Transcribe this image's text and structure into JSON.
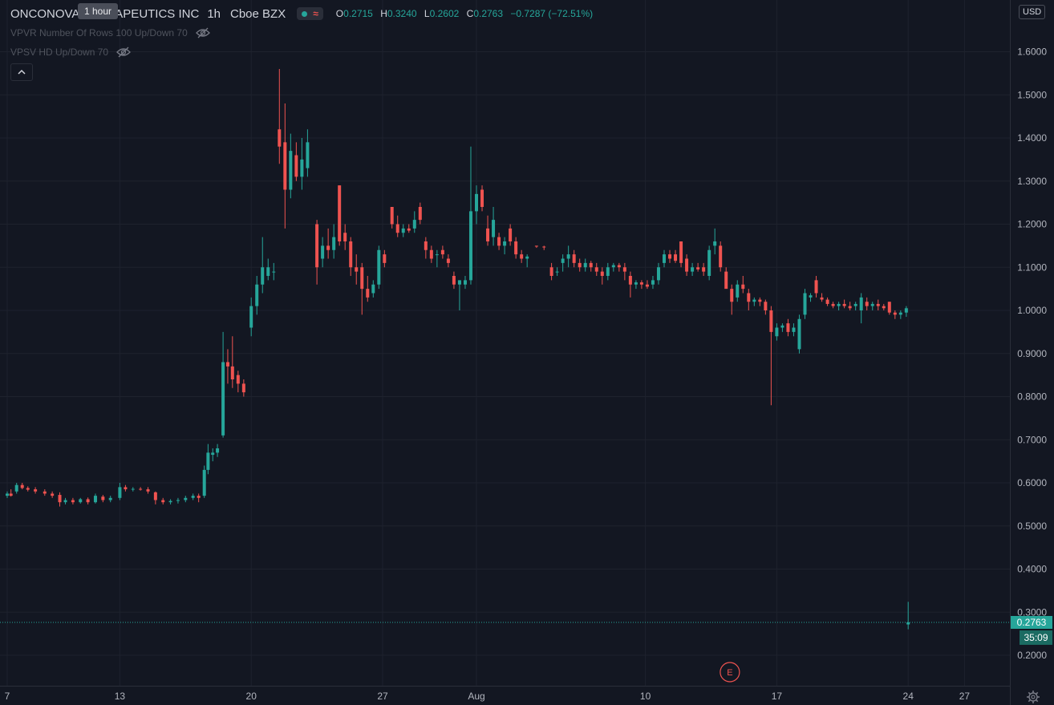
{
  "header": {
    "symbol": "ONCONOVA THERAPEUTICS INC",
    "interval": "1h",
    "exchange": "Cboe BZX",
    "tooltip": "1 hour",
    "ohlc": {
      "o_label": "O",
      "o": "0.2715",
      "h_label": "H",
      "h": "0.3240",
      "l_label": "L",
      "l": "0.2602",
      "c_label": "C",
      "c": "0.2763",
      "change": "−0.7287 (−72.51%)"
    }
  },
  "indicators": [
    {
      "label": "VPVR Number Of Rows 100 Up/Down 70",
      "icon": "eye-off-icon"
    },
    {
      "label": "VPSV HD Up/Down 70",
      "icon": "eye-off-icon"
    }
  ],
  "currency": "USD",
  "last_price_label": "0.2763",
  "countdown": "35:09",
  "earnings_marker": "E",
  "colors": {
    "background": "#131722",
    "grid": "#1e222d",
    "up": "#26a69a",
    "down": "#ef5350",
    "text": "#b2b5be"
  },
  "chart_data": {
    "type": "candlestick",
    "interval": "1h",
    "currency": "USD",
    "y_ticks": [
      0.2,
      0.3,
      0.4,
      0.5,
      0.6,
      0.7,
      0.8,
      0.9,
      1.0,
      1.1,
      1.2,
      1.3,
      1.4,
      1.5,
      1.6
    ],
    "y_tick_labels": [
      "0.2000",
      "0.3000",
      "0.4000",
      "0.5000",
      "0.6000",
      "0.7000",
      "0.8000",
      "0.9000",
      "1.0000",
      "1.1000",
      "1.2000",
      "1.3000",
      "1.4000",
      "1.5000",
      "1.6000"
    ],
    "x_ticks": [
      {
        "label": "7",
        "day": 7
      },
      {
        "label": "13",
        "day": 13
      },
      {
        "label": "20",
        "day": 20
      },
      {
        "label": "27",
        "day": 27
      },
      {
        "label": "Aug",
        "day": 32
      },
      {
        "label": "10",
        "day": 41
      },
      {
        "label": "17",
        "day": 48
      },
      {
        "label": "24",
        "day": 55
      },
      {
        "label": "27",
        "day": 58
      }
    ],
    "last_price": 0.2763,
    "earnings_day": 45.5,
    "candles": [
      {
        "t": 7.0,
        "o": 0.57,
        "h": 0.58,
        "l": 0.565,
        "c": 0.575
      },
      {
        "t": 7.2,
        "o": 0.575,
        "h": 0.585,
        "l": 0.568,
        "c": 0.57
      },
      {
        "t": 7.5,
        "o": 0.58,
        "h": 0.6,
        "l": 0.575,
        "c": 0.595
      },
      {
        "t": 7.8,
        "o": 0.595,
        "h": 0.6,
        "l": 0.585,
        "c": 0.588
      },
      {
        "t": 8.1,
        "o": 0.588,
        "h": 0.592,
        "l": 0.58,
        "c": 0.584
      },
      {
        "t": 8.5,
        "o": 0.585,
        "h": 0.59,
        "l": 0.575,
        "c": 0.58
      },
      {
        "t": 9.0,
        "o": 0.58,
        "h": 0.585,
        "l": 0.57,
        "c": 0.575
      },
      {
        "t": 9.4,
        "o": 0.575,
        "h": 0.58,
        "l": 0.565,
        "c": 0.57
      },
      {
        "t": 9.8,
        "o": 0.572,
        "h": 0.578,
        "l": 0.545,
        "c": 0.555
      },
      {
        "t": 10.1,
        "o": 0.555,
        "h": 0.565,
        "l": 0.55,
        "c": 0.56
      },
      {
        "t": 10.5,
        "o": 0.56,
        "h": 0.565,
        "l": 0.55,
        "c": 0.555
      },
      {
        "t": 10.9,
        "o": 0.555,
        "h": 0.565,
        "l": 0.552,
        "c": 0.562
      },
      {
        "t": 11.3,
        "o": 0.562,
        "h": 0.566,
        "l": 0.55,
        "c": 0.555
      },
      {
        "t": 11.7,
        "o": 0.555,
        "h": 0.575,
        "l": 0.552,
        "c": 0.57
      },
      {
        "t": 12.1,
        "o": 0.568,
        "h": 0.572,
        "l": 0.555,
        "c": 0.56
      },
      {
        "t": 12.5,
        "o": 0.56,
        "h": 0.57,
        "l": 0.555,
        "c": 0.565
      },
      {
        "t": 13.0,
        "o": 0.565,
        "h": 0.6,
        "l": 0.56,
        "c": 0.59
      },
      {
        "t": 13.3,
        "o": 0.59,
        "h": 0.595,
        "l": 0.58,
        "c": 0.585
      },
      {
        "t": 13.7,
        "o": 0.585,
        "h": 0.59,
        "l": 0.58,
        "c": 0.586
      },
      {
        "t": 14.1,
        "o": 0.586,
        "h": 0.59,
        "l": 0.582,
        "c": 0.585
      },
      {
        "t": 14.5,
        "o": 0.585,
        "h": 0.59,
        "l": 0.575,
        "c": 0.58
      },
      {
        "t": 14.9,
        "o": 0.578,
        "h": 0.58,
        "l": 0.55,
        "c": 0.56
      },
      {
        "t": 15.3,
        "o": 0.56,
        "h": 0.565,
        "l": 0.55,
        "c": 0.555
      },
      {
        "t": 15.7,
        "o": 0.555,
        "h": 0.562,
        "l": 0.55,
        "c": 0.558
      },
      {
        "t": 16.1,
        "o": 0.558,
        "h": 0.565,
        "l": 0.552,
        "c": 0.56
      },
      {
        "t": 16.5,
        "o": 0.56,
        "h": 0.57,
        "l": 0.555,
        "c": 0.565
      },
      {
        "t": 16.9,
        "o": 0.565,
        "h": 0.575,
        "l": 0.56,
        "c": 0.57
      },
      {
        "t": 17.2,
        "o": 0.57,
        "h": 0.575,
        "l": 0.555,
        "c": 0.565
      },
      {
        "t": 17.5,
        "o": 0.57,
        "h": 0.64,
        "l": 0.565,
        "c": 0.63
      },
      {
        "t": 17.7,
        "o": 0.63,
        "h": 0.69,
        "l": 0.62,
        "c": 0.67
      },
      {
        "t": 17.95,
        "o": 0.665,
        "h": 0.68,
        "l": 0.65,
        "c": 0.67
      },
      {
        "t": 18.2,
        "o": 0.67,
        "h": 0.69,
        "l": 0.66,
        "c": 0.68
      },
      {
        "t": 18.5,
        "o": 0.71,
        "h": 0.95,
        "l": 0.705,
        "c": 0.88
      },
      {
        "t": 18.75,
        "o": 0.88,
        "h": 0.91,
        "l": 0.83,
        "c": 0.87
      },
      {
        "t": 19.0,
        "o": 0.87,
        "h": 0.94,
        "l": 0.82,
        "c": 0.84
      },
      {
        "t": 19.3,
        "o": 0.85,
        "h": 0.86,
        "l": 0.81,
        "c": 0.83
      },
      {
        "t": 19.6,
        "o": 0.83,
        "h": 0.84,
        "l": 0.8,
        "c": 0.81
      },
      {
        "t": 20.0,
        "o": 0.96,
        "h": 1.03,
        "l": 0.94,
        "c": 1.01
      },
      {
        "t": 20.3,
        "o": 1.01,
        "h": 1.08,
        "l": 0.99,
        "c": 1.06
      },
      {
        "t": 20.6,
        "o": 1.06,
        "h": 1.17,
        "l": 1.04,
        "c": 1.1
      },
      {
        "t": 20.9,
        "o": 1.08,
        "h": 1.12,
        "l": 1.07,
        "c": 1.1
      },
      {
        "t": 21.2,
        "o": 1.09,
        "h": 1.11,
        "l": 1.07,
        "c": 1.09
      },
      {
        "t": 21.5,
        "o": 1.42,
        "h": 1.56,
        "l": 1.34,
        "c": 1.38
      },
      {
        "t": 21.8,
        "o": 1.39,
        "h": 1.48,
        "l": 1.19,
        "c": 1.28
      },
      {
        "t": 22.1,
        "o": 1.28,
        "h": 1.41,
        "l": 1.26,
        "c": 1.37
      },
      {
        "t": 22.4,
        "o": 1.36,
        "h": 1.39,
        "l": 1.3,
        "c": 1.31
      },
      {
        "t": 22.7,
        "o": 1.31,
        "h": 1.4,
        "l": 1.28,
        "c": 1.35
      },
      {
        "t": 23.0,
        "o": 1.33,
        "h": 1.42,
        "l": 1.31,
        "c": 1.39
      },
      {
        "t": 23.5,
        "o": 1.2,
        "h": 1.21,
        "l": 1.06,
        "c": 1.1
      },
      {
        "t": 23.8,
        "o": 1.12,
        "h": 1.17,
        "l": 1.1,
        "c": 1.15
      },
      {
        "t": 24.1,
        "o": 1.15,
        "h": 1.19,
        "l": 1.12,
        "c": 1.14
      },
      {
        "t": 24.4,
        "o": 1.14,
        "h": 1.2,
        "l": 1.12,
        "c": 1.17
      },
      {
        "t": 24.7,
        "o": 1.29,
        "h": 1.29,
        "l": 1.15,
        "c": 1.16
      },
      {
        "t": 25.0,
        "o": 1.18,
        "h": 1.2,
        "l": 1.14,
        "c": 1.16
      },
      {
        "t": 25.3,
        "o": 1.16,
        "h": 1.17,
        "l": 1.08,
        "c": 1.1
      },
      {
        "t": 25.6,
        "o": 1.1,
        "h": 1.13,
        "l": 1.06,
        "c": 1.09
      },
      {
        "t": 25.9,
        "o": 1.1,
        "h": 1.11,
        "l": 0.99,
        "c": 1.05
      },
      {
        "t": 26.2,
        "o": 1.05,
        "h": 1.08,
        "l": 1.02,
        "c": 1.03
      },
      {
        "t": 26.5,
        "o": 1.04,
        "h": 1.07,
        "l": 1.03,
        "c": 1.06
      },
      {
        "t": 26.8,
        "o": 1.06,
        "h": 1.15,
        "l": 1.05,
        "c": 1.14
      },
      {
        "t": 27.1,
        "o": 1.13,
        "h": 1.14,
        "l": 1.1,
        "c": 1.11
      },
      {
        "t": 27.5,
        "o": 1.24,
        "h": 1.24,
        "l": 1.19,
        "c": 1.2
      },
      {
        "t": 27.8,
        "o": 1.2,
        "h": 1.22,
        "l": 1.17,
        "c": 1.18
      },
      {
        "t": 28.1,
        "o": 1.18,
        "h": 1.2,
        "l": 1.17,
        "c": 1.19
      },
      {
        "t": 28.4,
        "o": 1.19,
        "h": 1.2,
        "l": 1.18,
        "c": 1.185
      },
      {
        "t": 28.7,
        "o": 1.19,
        "h": 1.23,
        "l": 1.18,
        "c": 1.21
      },
      {
        "t": 29.0,
        "o": 1.24,
        "h": 1.25,
        "l": 1.2,
        "c": 1.21
      },
      {
        "t": 29.3,
        "o": 1.16,
        "h": 1.17,
        "l": 1.12,
        "c": 1.14
      },
      {
        "t": 29.6,
        "o": 1.14,
        "h": 1.15,
        "l": 1.11,
        "c": 1.12
      },
      {
        "t": 29.9,
        "o": 1.13,
        "h": 1.14,
        "l": 1.1,
        "c": 1.13
      },
      {
        "t": 30.2,
        "o": 1.14,
        "h": 1.15,
        "l": 1.12,
        "c": 1.13
      },
      {
        "t": 30.5,
        "o": 1.12,
        "h": 1.13,
        "l": 1.1,
        "c": 1.11
      },
      {
        "t": 30.8,
        "o": 1.08,
        "h": 1.09,
        "l": 1.05,
        "c": 1.06
      },
      {
        "t": 31.1,
        "o": 1.06,
        "h": 1.07,
        "l": 1.0,
        "c": 1.07
      },
      {
        "t": 31.4,
        "o": 1.06,
        "h": 1.08,
        "l": 1.05,
        "c": 1.07
      },
      {
        "t": 31.7,
        "o": 1.07,
        "h": 1.38,
        "l": 1.06,
        "c": 1.23
      },
      {
        "t": 32.0,
        "o": 1.23,
        "h": 1.29,
        "l": 1.2,
        "c": 1.27
      },
      {
        "t": 32.3,
        "o": 1.28,
        "h": 1.29,
        "l": 1.23,
        "c": 1.24
      },
      {
        "t": 32.6,
        "o": 1.19,
        "h": 1.22,
        "l": 1.15,
        "c": 1.16
      },
      {
        "t": 32.9,
        "o": 1.17,
        "h": 1.24,
        "l": 1.15,
        "c": 1.21
      },
      {
        "t": 33.2,
        "o": 1.17,
        "h": 1.18,
        "l": 1.14,
        "c": 1.15
      },
      {
        "t": 33.5,
        "o": 1.15,
        "h": 1.17,
        "l": 1.13,
        "c": 1.16
      },
      {
        "t": 33.8,
        "o": 1.19,
        "h": 1.2,
        "l": 1.15,
        "c": 1.16
      },
      {
        "t": 34.1,
        "o": 1.16,
        "h": 1.17,
        "l": 1.12,
        "c": 1.13
      },
      {
        "t": 34.4,
        "o": 1.13,
        "h": 1.14,
        "l": 1.11,
        "c": 1.12
      },
      {
        "t": 34.7,
        "o": 1.12,
        "h": 1.13,
        "l": 1.1,
        "c": 1.125
      },
      {
        "t": 35.2,
        "o": 1.15,
        "h": 1.15,
        "l": 1.145,
        "c": 1.148
      },
      {
        "t": 35.6,
        "o": 1.148,
        "h": 1.15,
        "l": 1.14,
        "c": 1.146
      },
      {
        "t": 36.0,
        "o": 1.1,
        "h": 1.11,
        "l": 1.07,
        "c": 1.08
      },
      {
        "t": 36.3,
        "o": 1.09,
        "h": 1.1,
        "l": 1.08,
        "c": 1.09
      },
      {
        "t": 36.6,
        "o": 1.11,
        "h": 1.13,
        "l": 1.09,
        "c": 1.12
      },
      {
        "t": 36.9,
        "o": 1.12,
        "h": 1.15,
        "l": 1.1,
        "c": 1.13
      },
      {
        "t": 37.2,
        "o": 1.13,
        "h": 1.14,
        "l": 1.1,
        "c": 1.11
      },
      {
        "t": 37.5,
        "o": 1.11,
        "h": 1.12,
        "l": 1.09,
        "c": 1.1
      },
      {
        "t": 37.8,
        "o": 1.1,
        "h": 1.12,
        "l": 1.09,
        "c": 1.11
      },
      {
        "t": 38.1,
        "o": 1.11,
        "h": 1.115,
        "l": 1.09,
        "c": 1.1
      },
      {
        "t": 38.4,
        "o": 1.1,
        "h": 1.11,
        "l": 1.08,
        "c": 1.09
      },
      {
        "t": 38.7,
        "o": 1.09,
        "h": 1.1,
        "l": 1.06,
        "c": 1.08
      },
      {
        "t": 39.0,
        "o": 1.08,
        "h": 1.11,
        "l": 1.07,
        "c": 1.1
      },
      {
        "t": 39.3,
        "o": 1.1,
        "h": 1.11,
        "l": 1.09,
        "c": 1.105
      },
      {
        "t": 39.6,
        "o": 1.105,
        "h": 1.11,
        "l": 1.09,
        "c": 1.1
      },
      {
        "t": 39.9,
        "o": 1.1,
        "h": 1.11,
        "l": 1.07,
        "c": 1.09
      },
      {
        "t": 40.2,
        "o": 1.08,
        "h": 1.09,
        "l": 1.03,
        "c": 1.06
      },
      {
        "t": 40.5,
        "o": 1.06,
        "h": 1.07,
        "l": 1.05,
        "c": 1.065
      },
      {
        "t": 40.8,
        "o": 1.065,
        "h": 1.07,
        "l": 1.05,
        "c": 1.06
      },
      {
        "t": 41.1,
        "o": 1.06,
        "h": 1.07,
        "l": 1.05,
        "c": 1.055
      },
      {
        "t": 41.4,
        "o": 1.06,
        "h": 1.08,
        "l": 1.05,
        "c": 1.07
      },
      {
        "t": 41.7,
        "o": 1.07,
        "h": 1.11,
        "l": 1.06,
        "c": 1.1
      },
      {
        "t": 42.0,
        "o": 1.11,
        "h": 1.14,
        "l": 1.1,
        "c": 1.13
      },
      {
        "t": 42.3,
        "o": 1.13,
        "h": 1.14,
        "l": 1.11,
        "c": 1.12
      },
      {
        "t": 42.6,
        "o": 1.13,
        "h": 1.14,
        "l": 1.11,
        "c": 1.115
      },
      {
        "t": 42.9,
        "o": 1.16,
        "h": 1.16,
        "l": 1.1,
        "c": 1.11
      },
      {
        "t": 43.2,
        "o": 1.12,
        "h": 1.13,
        "l": 1.08,
        "c": 1.09
      },
      {
        "t": 43.5,
        "o": 1.09,
        "h": 1.11,
        "l": 1.08,
        "c": 1.1
      },
      {
        "t": 43.8,
        "o": 1.1,
        "h": 1.11,
        "l": 1.09,
        "c": 1.095
      },
      {
        "t": 44.1,
        "o": 1.1,
        "h": 1.11,
        "l": 1.08,
        "c": 1.09
      },
      {
        "t": 44.4,
        "o": 1.08,
        "h": 1.15,
        "l": 1.07,
        "c": 1.14
      },
      {
        "t": 44.7,
        "o": 1.15,
        "h": 1.19,
        "l": 1.13,
        "c": 1.16
      },
      {
        "t": 45.0,
        "o": 1.15,
        "h": 1.16,
        "l": 1.09,
        "c": 1.1
      },
      {
        "t": 45.3,
        "o": 1.09,
        "h": 1.1,
        "l": 1.06,
        "c": 1.05
      },
      {
        "t": 45.6,
        "o": 1.05,
        "h": 1.06,
        "l": 0.99,
        "c": 1.02
      },
      {
        "t": 45.9,
        "o": 1.03,
        "h": 1.07,
        "l": 1.02,
        "c": 1.06
      },
      {
        "t": 46.2,
        "o": 1.06,
        "h": 1.08,
        "l": 1.04,
        "c": 1.05
      },
      {
        "t": 46.5,
        "o": 1.04,
        "h": 1.05,
        "l": 1.0,
        "c": 1.02
      },
      {
        "t": 46.8,
        "o": 1.02,
        "h": 1.03,
        "l": 1.01,
        "c": 1.025
      },
      {
        "t": 47.1,
        "o": 1.025,
        "h": 1.03,
        "l": 1.01,
        "c": 1.02
      },
      {
        "t": 47.4,
        "o": 1.02,
        "h": 1.025,
        "l": 0.99,
        "c": 1.0
      },
      {
        "t": 47.7,
        "o": 1.0,
        "h": 1.01,
        "l": 0.78,
        "c": 0.95
      },
      {
        "t": 48.0,
        "o": 0.94,
        "h": 0.97,
        "l": 0.93,
        "c": 0.96
      },
      {
        "t": 48.3,
        "o": 0.96,
        "h": 0.97,
        "l": 0.95,
        "c": 0.965
      },
      {
        "t": 48.6,
        "o": 0.97,
        "h": 0.98,
        "l": 0.94,
        "c": 0.95
      },
      {
        "t": 48.9,
        "o": 0.95,
        "h": 0.97,
        "l": 0.94,
        "c": 0.96
      },
      {
        "t": 49.2,
        "o": 0.91,
        "h": 0.99,
        "l": 0.9,
        "c": 0.98
      },
      {
        "t": 49.5,
        "o": 0.99,
        "h": 1.05,
        "l": 0.98,
        "c": 1.04
      },
      {
        "t": 49.8,
        "o": 1.03,
        "h": 1.04,
        "l": 1.02,
        "c": 1.035
      },
      {
        "t": 50.1,
        "o": 1.07,
        "h": 1.08,
        "l": 1.03,
        "c": 1.04
      },
      {
        "t": 50.4,
        "o": 1.03,
        "h": 1.04,
        "l": 1.02,
        "c": 1.025
      },
      {
        "t": 50.7,
        "o": 1.025,
        "h": 1.03,
        "l": 1.01,
        "c": 1.015
      },
      {
        "t": 51.0,
        "o": 1.015,
        "h": 1.02,
        "l": 1.005,
        "c": 1.01
      },
      {
        "t": 51.3,
        "o": 1.01,
        "h": 1.02,
        "l": 1.0,
        "c": 1.015
      },
      {
        "t": 51.6,
        "o": 1.015,
        "h": 1.025,
        "l": 1.005,
        "c": 1.01
      },
      {
        "t": 51.9,
        "o": 1.01,
        "h": 1.02,
        "l": 1.0,
        "c": 1.005
      },
      {
        "t": 52.2,
        "o": 1.01,
        "h": 1.02,
        "l": 1.0,
        "c": 1.015
      },
      {
        "t": 52.5,
        "o": 1.0,
        "h": 1.04,
        "l": 0.97,
        "c": 1.03
      },
      {
        "t": 52.8,
        "o": 1.02,
        "h": 1.03,
        "l": 1.0,
        "c": 1.01
      },
      {
        "t": 53.1,
        "o": 1.01,
        "h": 1.02,
        "l": 1.0,
        "c": 1.015
      },
      {
        "t": 53.4,
        "o": 1.015,
        "h": 1.025,
        "l": 1.0,
        "c": 1.01
      },
      {
        "t": 53.7,
        "o": 1.01,
        "h": 1.015,
        "l": 1.0,
        "c": 1.005
      },
      {
        "t": 54.0,
        "o": 1.02,
        "h": 1.02,
        "l": 0.99,
        "c": 0.995
      },
      {
        "t": 54.3,
        "o": 0.995,
        "h": 1.0,
        "l": 0.98,
        "c": 0.99
      },
      {
        "t": 54.6,
        "o": 0.99,
        "h": 1.0,
        "l": 0.98,
        "c": 0.995
      },
      {
        "t": 54.9,
        "o": 0.995,
        "h": 1.01,
        "l": 0.985,
        "c": 1.005
      },
      {
        "t": 55.0,
        "o": 0.2715,
        "h": 0.324,
        "l": 0.2602,
        "c": 0.2763
      }
    ]
  }
}
